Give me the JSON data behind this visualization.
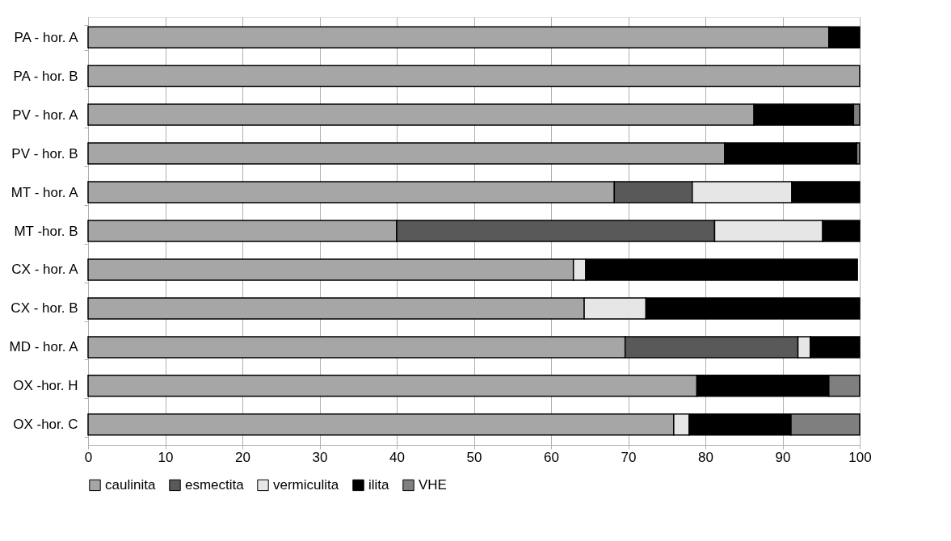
{
  "chart_data": {
    "type": "bar",
    "orientation": "horizontal",
    "stacked": true,
    "categories": [
      "PA - hor. A",
      "PA - hor. B",
      "PV - hor. A",
      "PV - hor. B",
      "MT - hor. A",
      "MT -hor. B",
      "CX - hor. A",
      "CX - hor. B",
      "MD - hor. A",
      "OX -hor. H",
      "OX -hor. C"
    ],
    "series": [
      {
        "name": "caulinita",
        "color": "#a6a6a6",
        "values": [
          96,
          100,
          86.3,
          82.5,
          68.2,
          40,
          62.9,
          64.3,
          69.6,
          78.9,
          75.9
        ]
      },
      {
        "name": "esmectita",
        "color": "#595959",
        "values": [
          null,
          null,
          null,
          null,
          10.1,
          41.2,
          null,
          null,
          22.4,
          null,
          null
        ]
      },
      {
        "name": "vermiculita",
        "color": "#e6e6e6",
        "values": [
          null,
          null,
          null,
          null,
          12.9,
          14,
          1.6,
          8,
          1.6,
          null,
          2
        ]
      },
      {
        "name": "ilita",
        "color": "#000000",
        "values": [
          4,
          null,
          12.9,
          17.1,
          8.8,
          4.8,
          35.2,
          27.7,
          6.4,
          17.1,
          13.2
        ]
      },
      {
        "name": "VHE",
        "color": "#7f7f7f",
        "values": [
          null,
          null,
          0.8,
          0.4,
          null,
          null,
          null,
          null,
          null,
          4,
          8.9
        ]
      }
    ],
    "xlim": [
      0,
      100
    ],
    "xticks": [
      0,
      10,
      20,
      30,
      40,
      50,
      60,
      70,
      80,
      90,
      100
    ],
    "grid": "x",
    "legend": "bottom"
  }
}
